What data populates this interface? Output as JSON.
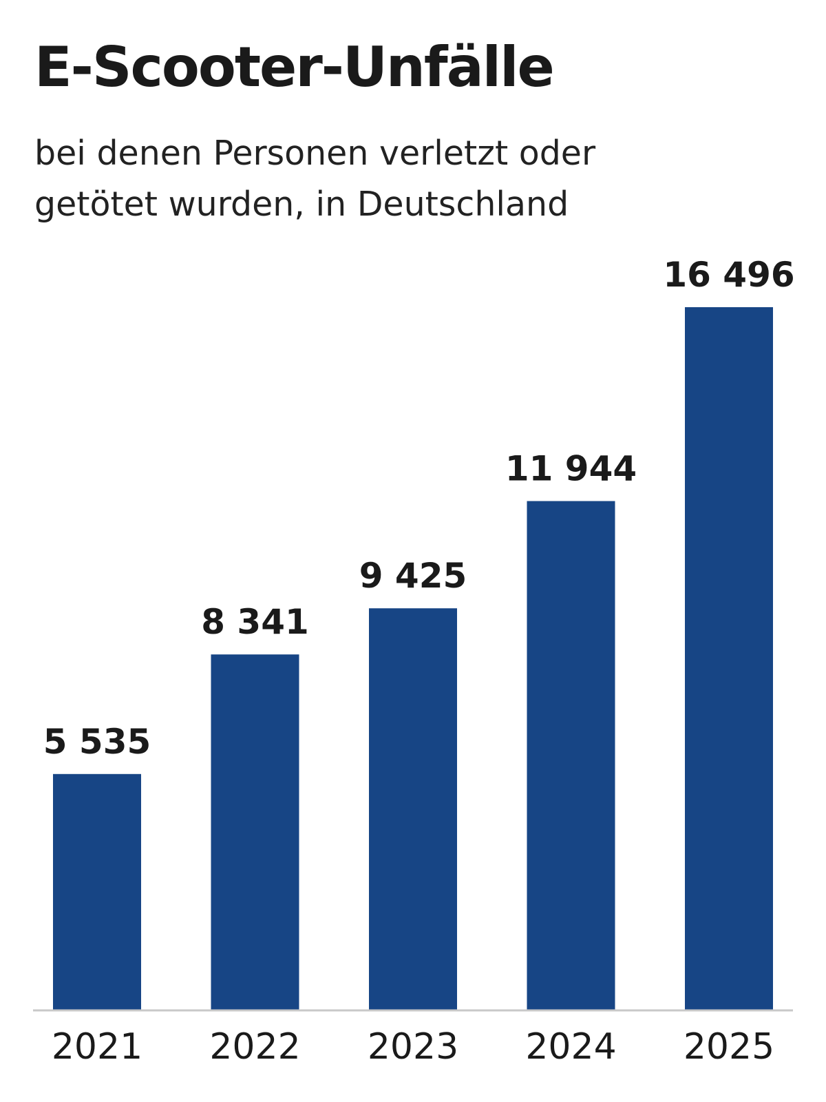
{
  "header": {
    "title": "E-Scooter-Unfälle",
    "subtitle_line1": "bei denen Personen verletzt oder",
    "subtitle_line2": "getötet wurden, in Deutschland"
  },
  "colors": {
    "bar": "#174585",
    "axis": "#c8c8c8",
    "text": "#1a1a1a"
  },
  "chart_data": {
    "type": "bar",
    "title": "E-Scooter-Unfälle",
    "subtitle": "bei denen Personen verletzt oder getötet wurden, in Deutschland",
    "categories": [
      "2021",
      "2022",
      "2023",
      "2024",
      "2025"
    ],
    "values": [
      5535,
      8341,
      9425,
      11944,
      16496
    ],
    "value_labels": [
      "5 535",
      "8 341",
      "9 425",
      "11 944",
      "16 496"
    ],
    "xlabel": "",
    "ylabel": "",
    "ylim": [
      0,
      16496
    ],
    "grid": false,
    "legend": "none"
  }
}
